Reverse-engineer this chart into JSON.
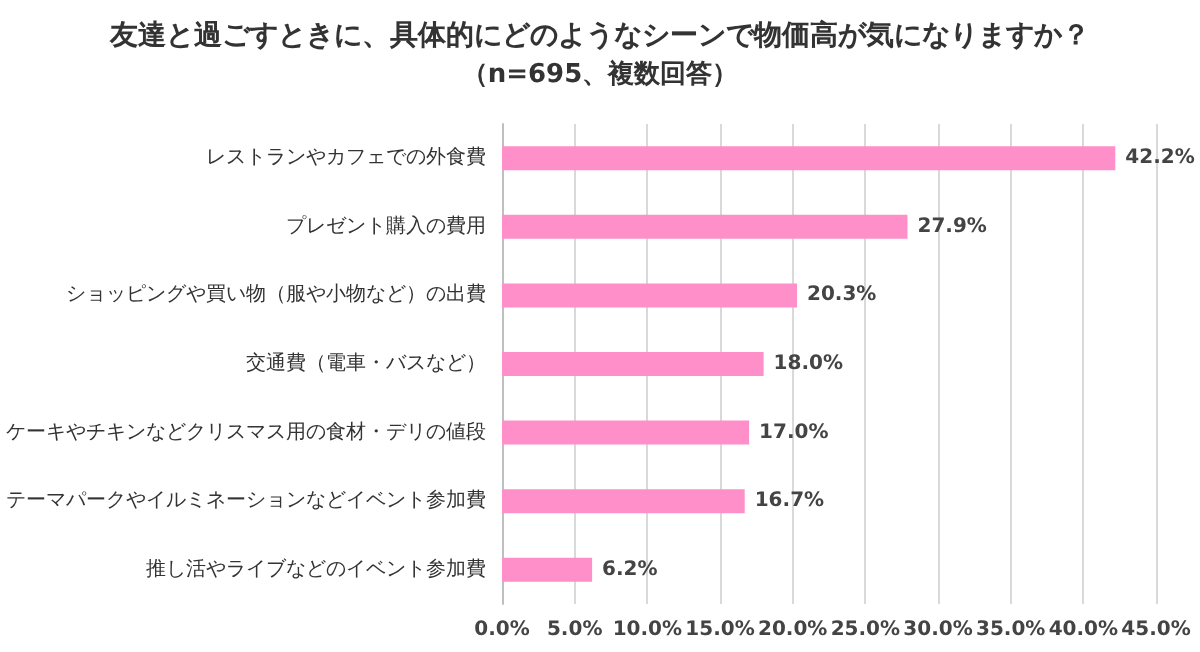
{
  "chart_data": {
    "type": "bar",
    "orientation": "horizontal",
    "title": "友達と過ごすときに、具体的にどのようなシーンで物価高が気になりますか？",
    "subtitle": "（n=695、複数回答）",
    "categories": [
      "レストランやカフェでの外食費",
      "プレゼント購入の費用",
      "ショッピングや買い物（服や小物など）の出費",
      "交通費（電車・バスなど）",
      "ケーキやチキンなどクリスマス用の食材・デリの値段",
      "テーマパークやイルミネーションなどイベント参加費",
      "推し活やライブなどのイベント参加費"
    ],
    "values": [
      42.2,
      27.9,
      20.3,
      18.0,
      17.0,
      16.7,
      6.2
    ],
    "value_labels": [
      "42.2%",
      "27.9%",
      "20.3%",
      "18.0%",
      "17.0%",
      "16.7%",
      "6.2%"
    ],
    "color": "#ff8fc8",
    "xlim": [
      0,
      45
    ],
    "xticks": [
      {
        "value": 0,
        "label": "0.0%"
      },
      {
        "value": 5,
        "label": "5.0%"
      },
      {
        "value": 10,
        "label": "10.0%"
      },
      {
        "value": 15,
        "label": "15.0%"
      },
      {
        "value": 20,
        "label": "20.0%"
      },
      {
        "value": 25,
        "label": "25.0%"
      },
      {
        "value": 30,
        "label": "30.0%"
      },
      {
        "value": 35,
        "label": "35.0%"
      },
      {
        "value": 40,
        "label": "40.0%"
      },
      {
        "value": 45,
        "label": "45.0%"
      }
    ],
    "grid": "x"
  }
}
